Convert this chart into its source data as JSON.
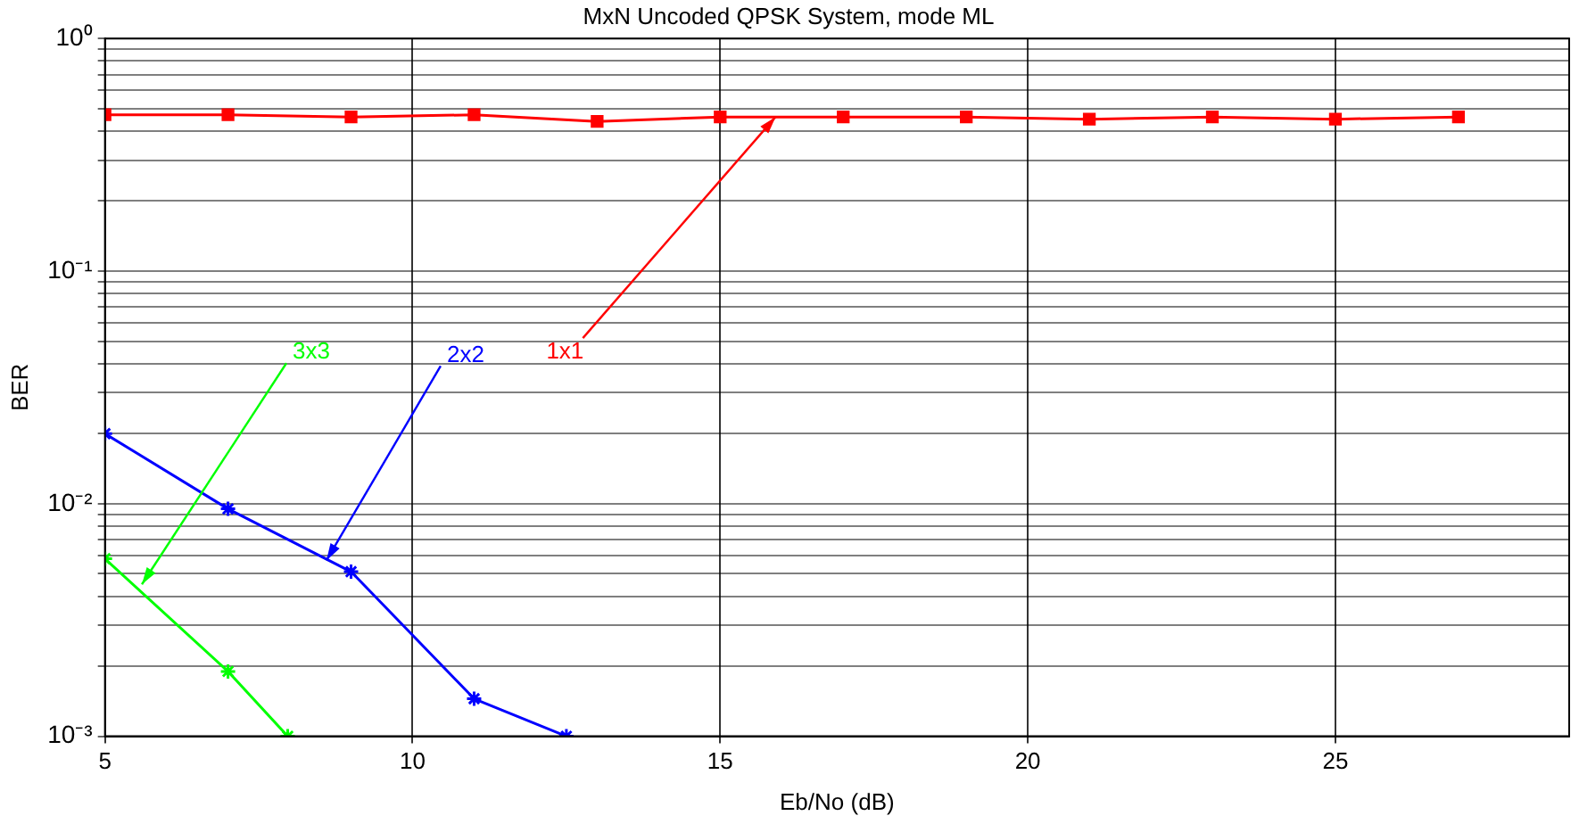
{
  "chart_data": {
    "type": "line",
    "title": "MxN Uncoded QPSK System, mode ML",
    "xlabel": "Eb/No (dB)",
    "ylabel": "BER",
    "log": "y",
    "grid": true,
    "legend": false,
    "line_style": "solid",
    "xlim": [
      5,
      28.8
    ],
    "xticks": [
      5,
      10,
      15,
      20,
      25
    ],
    "ylim": [
      0.001,
      1
    ],
    "yticks": [
      {
        "value": 0.001,
        "label": "10⁻³"
      },
      {
        "value": 0.002,
        "label": null
      },
      {
        "value": 0.003,
        "label": null
      },
      {
        "value": 0.004,
        "label": null
      },
      {
        "value": 0.005,
        "label": null
      },
      {
        "value": 0.006,
        "label": null
      },
      {
        "value": 0.007,
        "label": null
      },
      {
        "value": 0.008,
        "label": null
      },
      {
        "value": 0.009,
        "label": null
      },
      {
        "value": 0.01,
        "label": "10⁻²"
      },
      {
        "value": 0.02,
        "label": null
      },
      {
        "value": 0.03,
        "label": null
      },
      {
        "value": 0.04,
        "label": null
      },
      {
        "value": 0.05,
        "label": null
      },
      {
        "value": 0.06,
        "label": null
      },
      {
        "value": 0.07,
        "label": null
      },
      {
        "value": 0.08,
        "label": null
      },
      {
        "value": 0.09,
        "label": null
      },
      {
        "value": 0.1,
        "label": "10⁻¹"
      },
      {
        "value": 0.2,
        "label": null
      },
      {
        "value": 0.3,
        "label": null
      },
      {
        "value": 0.4,
        "label": null
      },
      {
        "value": 0.5,
        "label": null
      },
      {
        "value": 0.6,
        "label": null
      },
      {
        "value": 0.7,
        "label": null
      },
      {
        "value": 0.8,
        "label": null
      },
      {
        "value": 0.9,
        "label": null
      },
      {
        "value": 1,
        "label": "10⁰"
      }
    ],
    "series": [
      {
        "color": "#ff0000",
        "marker": "square",
        "x": [
          5,
          7,
          9,
          11,
          13,
          15,
          17,
          19,
          21,
          23,
          25,
          27
        ],
        "values": [
          0.47,
          0.47,
          0.46,
          0.47,
          0.44,
          0.46,
          0.46,
          0.46,
          0.45,
          0.46,
          0.45,
          0.46
        ]
      },
      {
        "color": "#0000ff",
        "marker": "cross",
        "x": [
          5,
          7,
          9,
          11,
          12.5
        ],
        "values": [
          0.02,
          0.0095,
          0.0051,
          0.00145,
          0.001
        ]
      },
      {
        "color": "#00ff00",
        "marker": "cross",
        "x": [
          5,
          7,
          7.97
        ],
        "values": [
          0.0058,
          0.0019,
          0.001
        ]
      }
    ],
    "annotations": [
      {
        "text": "1x1",
        "x": 15.9,
        "y": 0.46
      },
      {
        "text": "2x2",
        "x": 8.6,
        "y": 0.0057
      },
      {
        "text": "3x3",
        "x": 5.6,
        "y": 0.0045
      }
    ]
  }
}
